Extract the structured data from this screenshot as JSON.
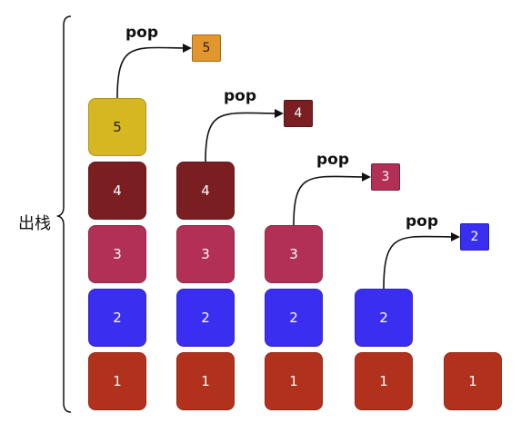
{
  "side_label": "出栈",
  "pop_label": "pop",
  "colors": {
    "1": "#b2311c",
    "2": "#3a2ef0",
    "3": "#b22f56",
    "4": "#7a1e22",
    "5": "#d6b621",
    "popped_5": "#e3962c",
    "arrow": "#111111",
    "brace": "#111111"
  },
  "stacks": [
    {
      "blocks": [
        "1",
        "2",
        "3",
        "4",
        "5"
      ],
      "popped": "5"
    },
    {
      "blocks": [
        "1",
        "2",
        "3",
        "4"
      ],
      "popped": "4"
    },
    {
      "blocks": [
        "1",
        "2",
        "3"
      ],
      "popped": "3"
    },
    {
      "blocks": [
        "1",
        "2"
      ],
      "popped": "2"
    },
    {
      "blocks": [
        "1"
      ],
      "popped": null
    }
  ]
}
